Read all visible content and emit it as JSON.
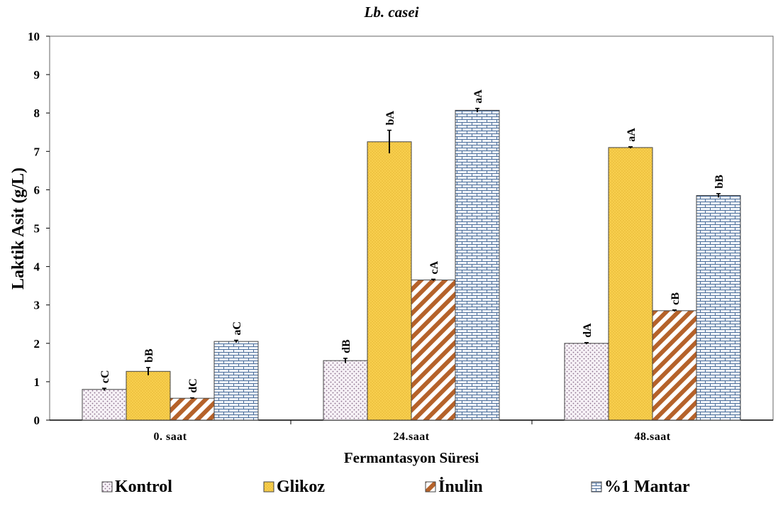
{
  "chart_data": {
    "type": "bar",
    "title": "Lb. casei",
    "xlabel": "Fermantasyon Süresi",
    "ylabel": "Laktik Asit (g/L)",
    "ylim": [
      0,
      10
    ],
    "yticks": [
      0,
      1,
      2,
      3,
      4,
      5,
      6,
      7,
      8,
      9,
      10
    ],
    "categories": [
      "0. saat",
      "24.saat",
      "48.saat"
    ],
    "legend_position": "bottom",
    "grid": false,
    "series": [
      {
        "name": "Kontrol",
        "pattern": "dots",
        "color": "#8a6d8c",
        "fill": "#f4eef5",
        "values": [
          0.8,
          1.55,
          2.0
        ],
        "errors": [
          0.03,
          0.06,
          0.02
        ],
        "labels": [
          "cC",
          "dB",
          "dA"
        ]
      },
      {
        "name": "Glikoz",
        "pattern": "solid-dots",
        "color": "#c9a227",
        "fill": "#f8cf4e",
        "values": [
          1.27,
          7.25,
          7.1
        ],
        "errors": [
          0.1,
          0.3,
          0.02
        ],
        "labels": [
          "bB",
          "bA",
          "aA"
        ]
      },
      {
        "name": "İnulin",
        "pattern": "diagonal",
        "color": "#b5622a",
        "fill": "#ffffff",
        "values": [
          0.57,
          3.65,
          2.85
        ],
        "errors": [
          0.01,
          0.02,
          0.02
        ],
        "labels": [
          "dC",
          "cA",
          "cB"
        ]
      },
      {
        "name": "%1 Mantar",
        "pattern": "brick",
        "color": "#4a6d9a",
        "fill": "#f5f8fc",
        "values": [
          2.05,
          8.07,
          5.85
        ],
        "errors": [
          0.03,
          0.05,
          0.05
        ],
        "labels": [
          "aC",
          "aA",
          "bB"
        ]
      }
    ]
  }
}
